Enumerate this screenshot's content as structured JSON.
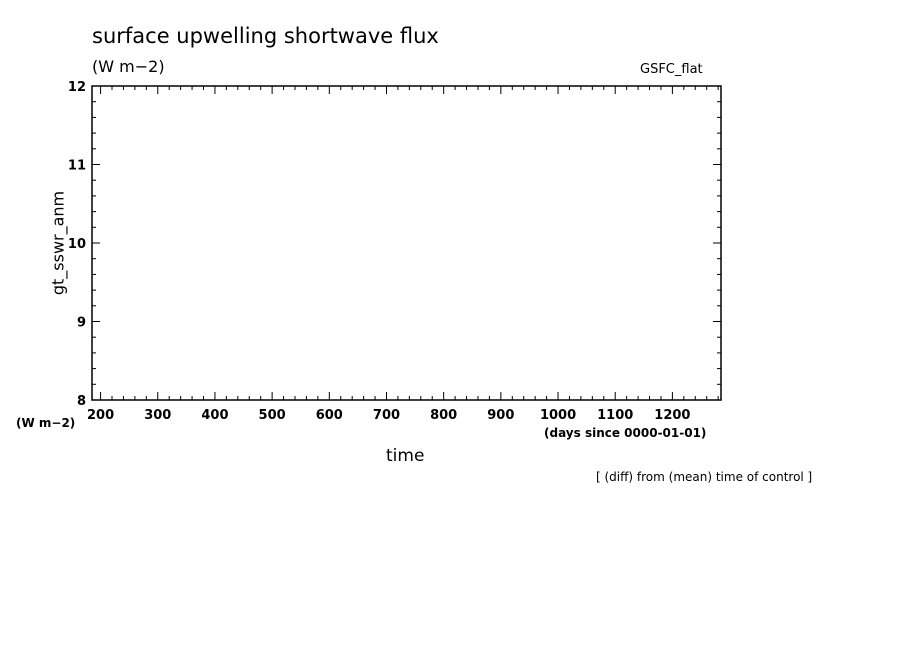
{
  "chart_data": {
    "type": "line",
    "title": "surface upwelling shortwave flux",
    "subtitle": "(W m−2)",
    "dataset_label": "GSFC_flat",
    "ylabel": "gt_sswr_anm",
    "yunit": "(W m−2)",
    "xlabel": "time",
    "xunit": "(days since 0000-01-01)",
    "note": "[ (diff) from (mean) time of control ]",
    "xlim": [
      185,
      1285
    ],
    "ylim": [
      8,
      12
    ],
    "xticks": [
      200,
      300,
      400,
      500,
      600,
      700,
      800,
      900,
      1000,
      1100,
      1200
    ],
    "yticks": [
      8,
      9,
      10,
      11,
      12
    ],
    "x_minor_step": 20,
    "y_minor_step": 0.2,
    "grid": false,
    "series": []
  }
}
